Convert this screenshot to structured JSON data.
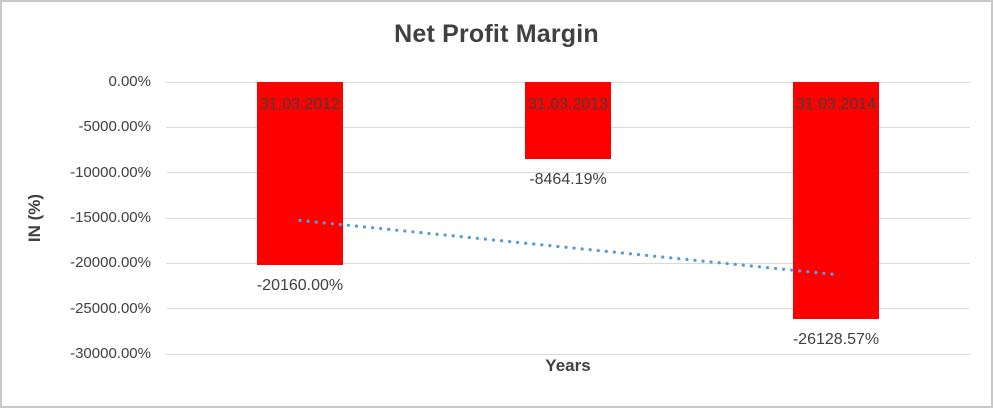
{
  "chart_data": {
    "type": "bar",
    "title": "Net Profit Margin",
    "xlabel": "Years",
    "ylabel": "IN (%)",
    "categories": [
      "31.03.2012",
      "31.03.2013",
      "31.03.2014"
    ],
    "series": [
      {
        "name": "Net Profit Margin",
        "values": [
          -20160.0,
          -8464.19,
          -26128.57
        ]
      }
    ],
    "data_labels": [
      "-20160.00%",
      "-8464.19%",
      "-26128.57%"
    ],
    "y_axis": {
      "min": -30000,
      "max": 0,
      "tick_step": 5000,
      "tick_values": [
        0,
        -5000,
        -10000,
        -15000,
        -20000,
        -25000,
        -30000
      ],
      "tick_labels": [
        "0.00%",
        "-5000.00%",
        "-10000.00%",
        "-15000.00%",
        "-20000.00%",
        "-25000.00%",
        "-30000.00%"
      ]
    },
    "trendline": {
      "type": "linear",
      "style": "dotted",
      "color": "#5b9bd5",
      "start_value": -15266.67,
      "end_value": -21235.24
    },
    "grid": true,
    "legend": "none",
    "colors": {
      "bar": "#ff0000",
      "gridline": "#d9d9d9",
      "text": "#404040",
      "category_label": "#3f3f3f",
      "background": "#ffffff",
      "frame_border": "#c8c8c8"
    }
  }
}
